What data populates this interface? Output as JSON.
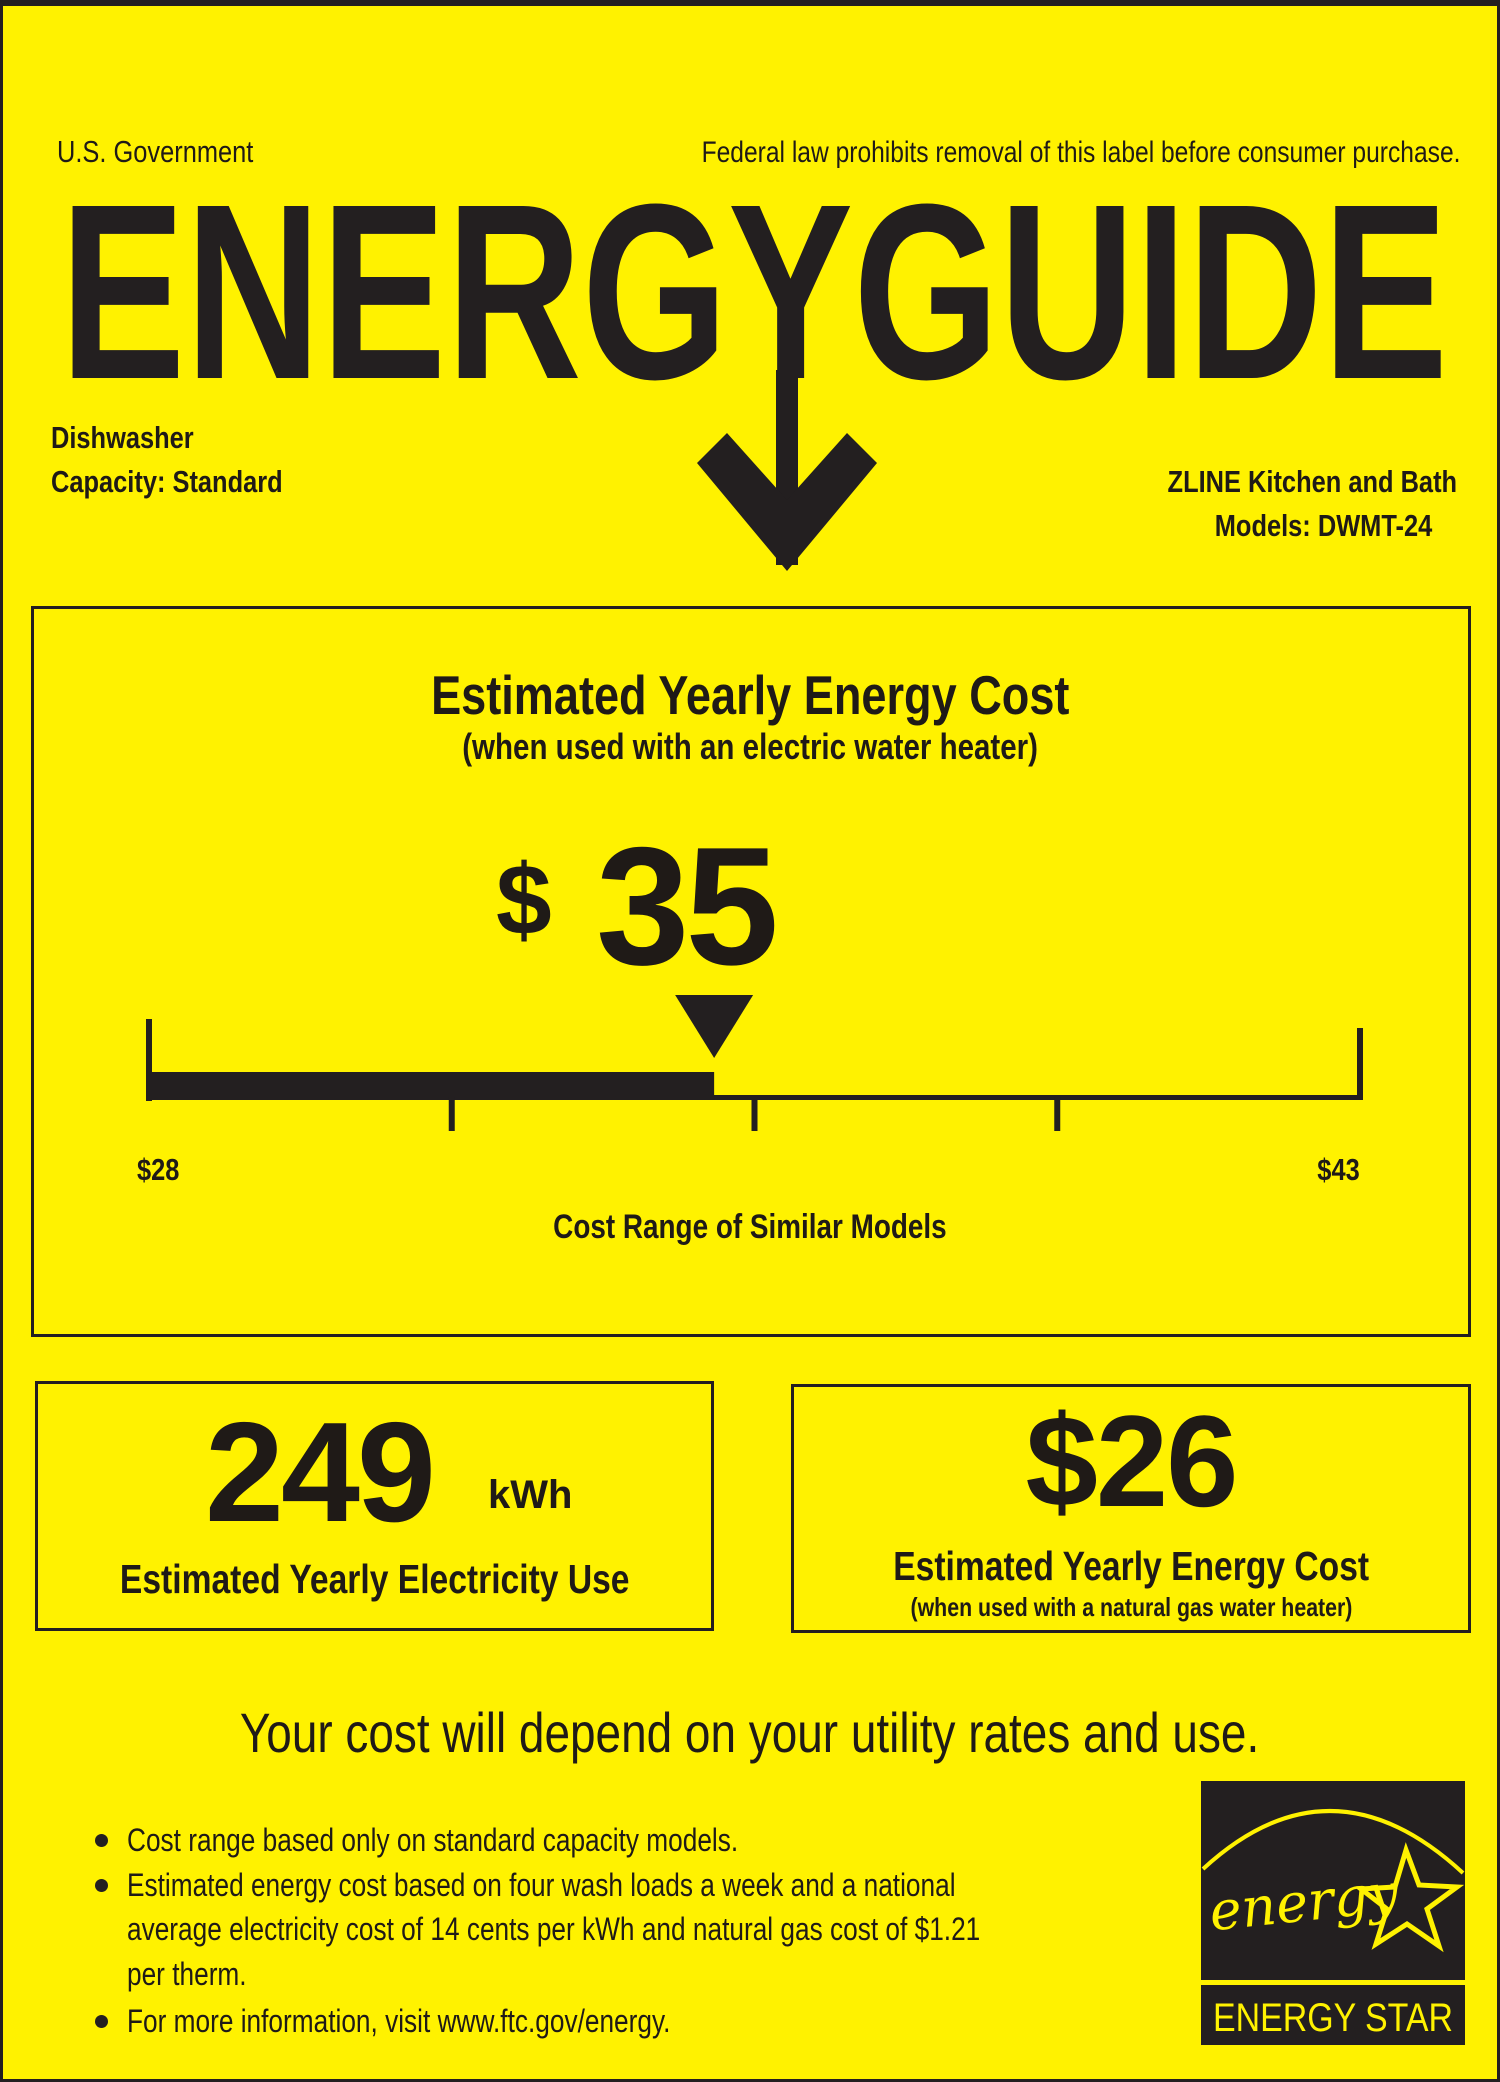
{
  "header": {
    "government": "U.S. Government",
    "federal_notice": "Federal law prohibits removal of this label before consumer purchase.",
    "logo_text": "ENERGYGUIDE"
  },
  "product": {
    "type": "Dishwasher",
    "capacity": "Capacity: Standard",
    "manufacturer": "ZLINE Kitchen and Bath",
    "models": "Models: DWMT-24"
  },
  "main_cost": {
    "title": "Estimated Yearly Energy Cost",
    "subtitle": "(when used with an electric water heater)",
    "currency": "$",
    "value": "35",
    "range_min_label": "$28",
    "range_max_label": "$43",
    "range_min": 28,
    "range_max": 43,
    "cost": 35,
    "range_caption": "Cost Range of Similar Models"
  },
  "electricity": {
    "value": "249",
    "unit": "kWh",
    "label": "Estimated Yearly Electricity Use"
  },
  "gas_cost": {
    "value": "$26",
    "label": "Estimated Yearly Energy Cost",
    "sublabel": "(when used with a natural gas water heater)"
  },
  "disclaimer": "Your cost will depend on your utility rates and use.",
  "notes": [
    "Cost range based only on standard capacity models.",
    "Estimated energy cost based on four wash loads a week and a national",
    "average electricity cost of 14 cents per kWh and natural gas cost of $1.21",
    "per therm.",
    "For more information, visit www.ftc.gov/energy."
  ],
  "energy_star": {
    "script": "energy",
    "label": "ENERGY STAR"
  },
  "colors": {
    "background": "#fff200",
    "ink": "#231f20"
  }
}
